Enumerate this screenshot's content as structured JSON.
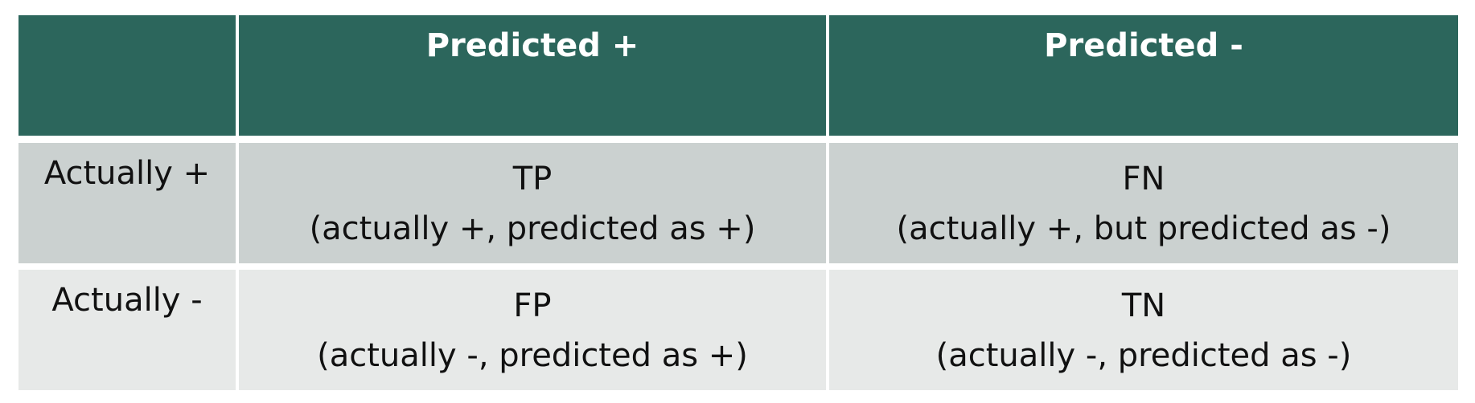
{
  "table": {
    "corner": "",
    "columns": [
      "Predicted +",
      "Predicted -"
    ],
    "rows": [
      {
        "label": "Actually +",
        "cells": [
          {
            "abbr": "TP",
            "desc": "(actually +, predicted as +)"
          },
          {
            "abbr": "FN",
            "desc": "(actually +, but predicted as -)"
          }
        ]
      },
      {
        "label": "Actually -",
        "cells": [
          {
            "abbr": "FP",
            "desc": "(actually -, predicted as +)"
          },
          {
            "abbr": "TN",
            "desc": "(actually -, predicted as -)"
          }
        ]
      }
    ]
  },
  "colors": {
    "header_bg": "#2c665c",
    "row1_bg": "#cbd1d0",
    "row2_bg": "#e7e9e8"
  }
}
